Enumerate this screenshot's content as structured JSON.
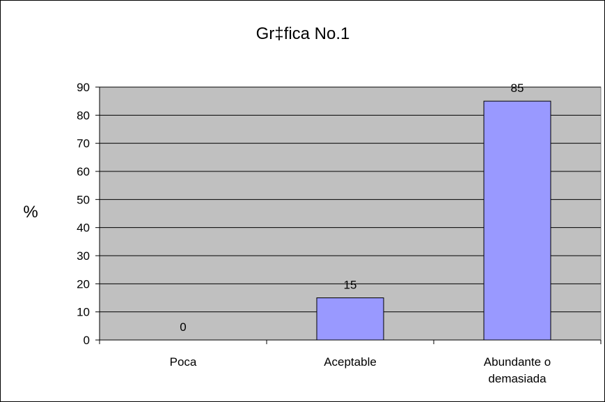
{
  "chart_data": {
    "type": "bar",
    "title": "Gr‡fica No.1",
    "xlabel": "",
    "ylabel": "%",
    "categories": [
      "Poca",
      "Aceptable",
      "Abundante o demasiada"
    ],
    "category_lines": [
      [
        "Poca"
      ],
      [
        "Aceptable"
      ],
      [
        "Abundante o",
        "demasiada"
      ]
    ],
    "values": [
      0,
      15,
      85
    ],
    "data_labels": [
      "0",
      "15",
      "85"
    ],
    "ylim": [
      0,
      90
    ],
    "yticks": [
      0,
      10,
      20,
      30,
      40,
      50,
      60,
      70,
      80,
      90
    ],
    "grid": true,
    "legend": "none",
    "colors": {
      "bar_fill": "#9999ff",
      "bar_stroke": "#000000",
      "plot_background": "#c0c0c0",
      "gridline": "#000000"
    }
  }
}
